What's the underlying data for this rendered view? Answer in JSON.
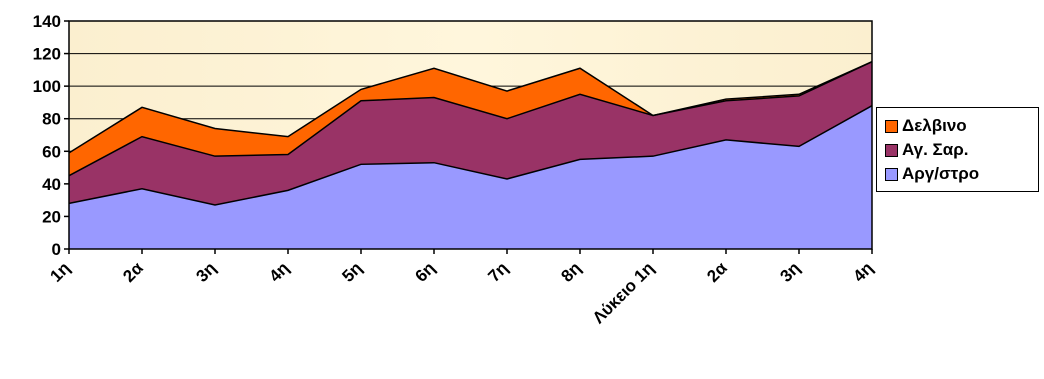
{
  "chart_data": {
    "type": "area",
    "stacked": true,
    "categories": [
      "1η",
      "2α",
      "3η",
      "4η",
      "5η",
      "6η",
      "7η",
      "8η",
      "Λύκειο 1η",
      "2α",
      "3η",
      "4η"
    ],
    "series": [
      {
        "name": "Αργ/στρο",
        "color": "#9999ff",
        "values": [
          28,
          37,
          27,
          36,
          52,
          53,
          43,
          55,
          57,
          67,
          63,
          88
        ]
      },
      {
        "name": "Αγ. Σαρ.",
        "color": "#993366",
        "values": [
          17,
          32,
          30,
          22,
          39,
          40,
          37,
          40,
          25,
          24,
          31,
          27
        ]
      },
      {
        "name": "Δελβινο",
        "color": "#ff6600",
        "values": [
          14,
          18,
          17,
          11,
          7,
          18,
          17,
          16,
          0,
          1,
          1,
          0
        ]
      }
    ],
    "ylim": [
      0,
      140
    ],
    "yticks": [
      "0",
      "20",
      "40",
      "60",
      "80",
      "100",
      "120",
      "140"
    ],
    "grid": true,
    "legend": "right",
    "plot_background": "#fff6dc"
  },
  "legend": {
    "items": [
      {
        "label": "Δελβινο",
        "color": "#ff6600"
      },
      {
        "label": "Αγ. Σαρ.",
        "color": "#993366"
      },
      {
        "label": "Αργ/στρο",
        "color": "#9999ff"
      }
    ]
  }
}
